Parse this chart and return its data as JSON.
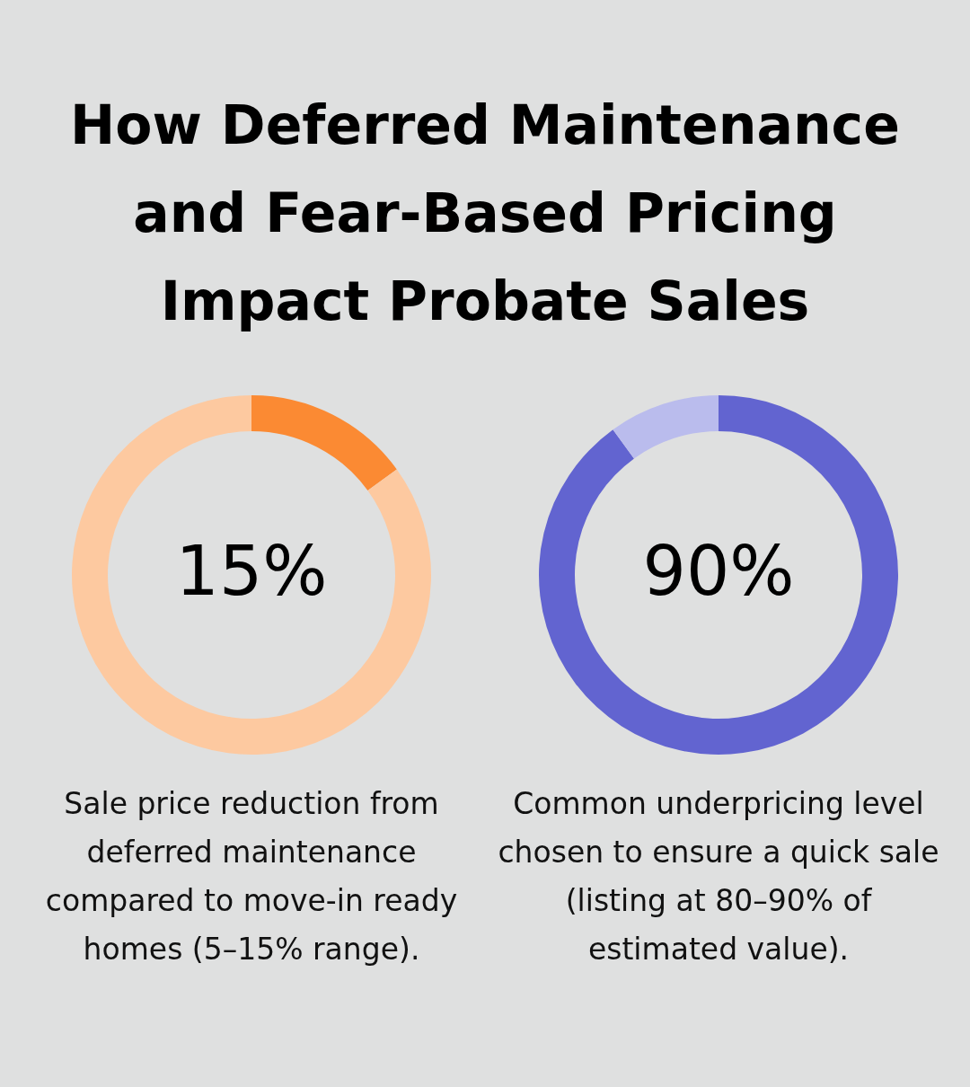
{
  "chart_data": [
    {
      "type": "donut",
      "title": "How Deferred Maintenance and Fear-Based Pricing Impact Probate Sales",
      "categories": [
        null,
        null
      ],
      "values": [
        15,
        85
      ],
      "colors": [
        "#fb8a33",
        "#fdc9a0"
      ],
      "value_labels": [
        "15%",
        null
      ],
      "annotations": [
        "Sale price reduction from deferred maintenance compared to move-in ready homes (5–15% range)."
      ]
    },
    {
      "type": "donut",
      "categories": [
        null,
        null
      ],
      "values": [
        90,
        10
      ],
      "colors": [
        "#6264d0",
        "#babced"
      ],
      "value_labels": [
        "90%",
        null
      ],
      "annotations": [
        "Common underpricing level chosen to ensure a quick sale (listing at 80–90% of estimated value)."
      ]
    }
  ]
}
